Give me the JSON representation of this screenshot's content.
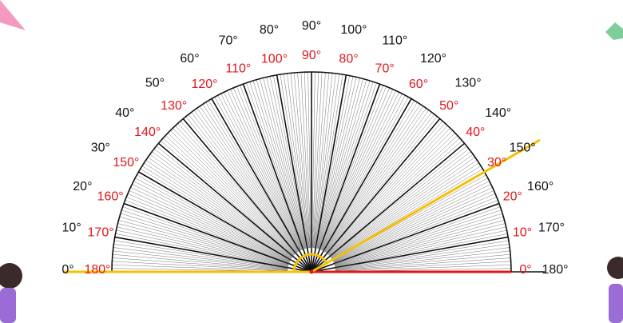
{
  "outer_scale": [
    "0°",
    "10°",
    "20°",
    "30°",
    "40°",
    "50°",
    "60°",
    "70°",
    "80°",
    "90°",
    "100°",
    "110°",
    "120°",
    "130°",
    "140°",
    "150°",
    "160°",
    "170°",
    "180°"
  ],
  "inner_scale": [
    "180°",
    "170°",
    "160°",
    "150°",
    "140°",
    "130°",
    "120°",
    "110°",
    "100°",
    "90°",
    "80°",
    "70°",
    "60°",
    "50°",
    "40°",
    "30°",
    "20°",
    "10°",
    "0°"
  ]
}
